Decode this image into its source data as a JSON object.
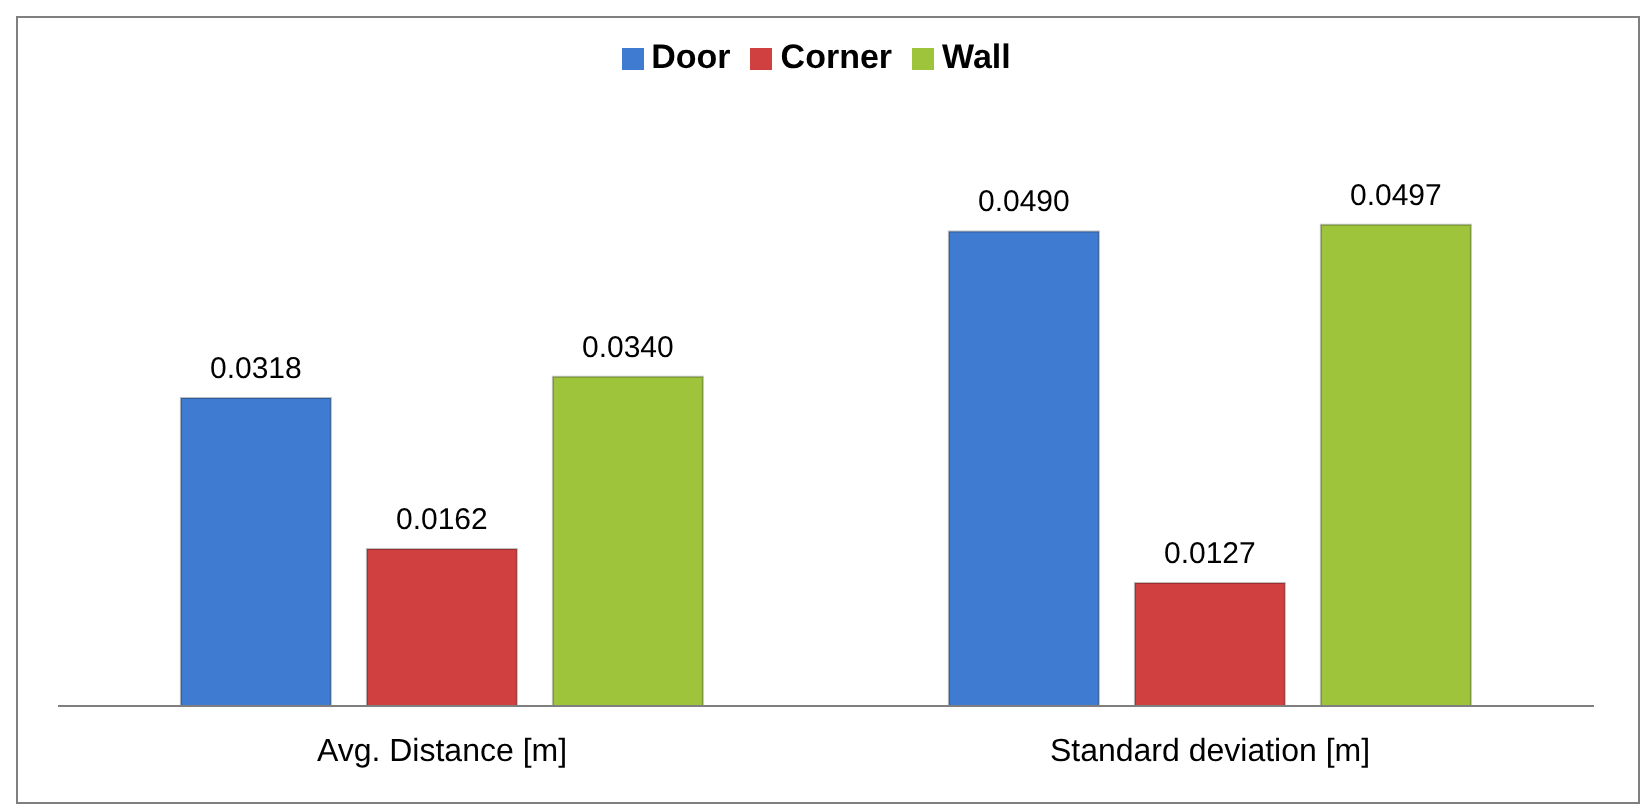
{
  "chart_data": {
    "type": "bar",
    "categories": [
      "Avg. Distance [m]",
      "Standard deviation [m]"
    ],
    "series": [
      {
        "name": "Door",
        "color": "#3f7bd0",
        "values": [
          0.0318,
          0.049
        ],
        "value_labels": [
          "0.0318",
          "0.0490"
        ]
      },
      {
        "name": "Corner",
        "color": "#d04040",
        "values": [
          0.0162,
          0.0127
        ],
        "value_labels": [
          "0.0162",
          "0.0127"
        ]
      },
      {
        "name": "Wall",
        "color": "#9dc43a",
        "values": [
          0.034,
          0.0497
        ],
        "value_labels": [
          "0.0340",
          "0.0497"
        ]
      }
    ],
    "legend": "top"
  }
}
